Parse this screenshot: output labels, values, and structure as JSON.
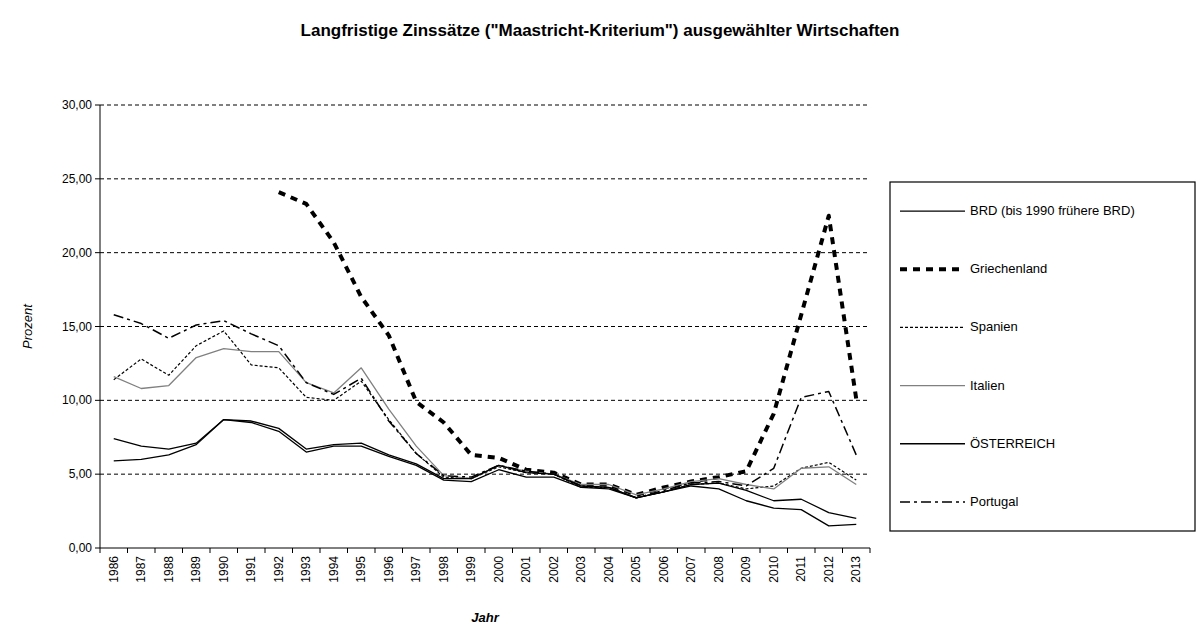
{
  "chart_data": {
    "type": "line",
    "title": "Langfristige Zinssätze (\"Maastricht-Kriterium\") ausgewählter Wirtschaften",
    "x_label": "Jahr",
    "y_label": "Prozent",
    "categories": [
      "1986",
      "1987",
      "1988",
      "1989",
      "1990",
      "1991",
      "1992",
      "1993",
      "1994",
      "1995",
      "1996",
      "1997",
      "1998",
      "1999",
      "2000",
      "2001",
      "2002",
      "2003",
      "2004",
      "2005",
      "2006",
      "2007",
      "2008",
      "2009",
      "2010",
      "2011",
      "2012",
      "2013"
    ],
    "ylim": [
      0,
      30
    ],
    "yticks": [
      {
        "value": 0,
        "label": "0,00"
      },
      {
        "value": 5,
        "label": "5,00"
      },
      {
        "value": 10,
        "label": "10,00"
      },
      {
        "value": 15,
        "label": "15,00"
      },
      {
        "value": 20,
        "label": "20,00"
      },
      {
        "value": 25,
        "label": "25,00"
      },
      {
        "value": 30,
        "label": "30,00"
      }
    ],
    "grid": true,
    "legend": "right",
    "series": [
      {
        "name": "BRD (bis 1990 frühere BRD)",
        "color": "#000000",
        "line_style": "solid",
        "values": [
          5.9,
          6.0,
          6.3,
          7.0,
          8.7,
          8.5,
          7.9,
          6.5,
          6.9,
          6.9,
          6.2,
          5.6,
          4.6,
          4.5,
          5.3,
          4.8,
          4.8,
          4.1,
          4.0,
          3.4,
          3.8,
          4.2,
          4.0,
          3.2,
          2.7,
          2.6,
          1.5,
          1.6
        ]
      },
      {
        "name": "Griechenland",
        "color": "#000000",
        "line_style": "dashed",
        "values": [
          null,
          null,
          null,
          null,
          null,
          null,
          24.1,
          23.3,
          20.7,
          17.0,
          14.4,
          9.9,
          8.5,
          6.3,
          6.1,
          5.3,
          5.1,
          4.3,
          4.3,
          3.6,
          4.1,
          4.5,
          4.8,
          5.2,
          9.1,
          15.8,
          22.5,
          10.1
        ]
      },
      {
        "name": "Spanien",
        "color": "#000000",
        "line_style": "dotted",
        "values": [
          11.4,
          12.8,
          11.7,
          13.7,
          14.7,
          12.4,
          12.2,
          10.2,
          10.0,
          11.3,
          8.7,
          6.4,
          4.8,
          4.7,
          5.5,
          5.1,
          5.0,
          4.1,
          4.1,
          3.4,
          3.8,
          4.3,
          4.4,
          4.0,
          4.2,
          5.4,
          5.8,
          4.6
        ]
      },
      {
        "name": "Italien",
        "color": "#808080",
        "line_style": "solid",
        "values": [
          11.6,
          10.8,
          11.0,
          12.9,
          13.5,
          13.3,
          13.3,
          11.2,
          10.5,
          12.2,
          9.4,
          6.9,
          4.9,
          4.7,
          5.6,
          5.2,
          5.0,
          4.3,
          4.3,
          3.6,
          4.0,
          4.5,
          4.7,
          4.3,
          4.0,
          5.4,
          5.5,
          4.3
        ]
      },
      {
        "name": "ÖSTERREICH",
        "color": "#000000",
        "line_style": "solid",
        "values": [
          7.4,
          6.9,
          6.7,
          7.1,
          8.7,
          8.6,
          8.1,
          6.7,
          7.0,
          7.1,
          6.3,
          5.7,
          4.7,
          4.7,
          5.6,
          5.1,
          5.0,
          4.2,
          4.1,
          3.4,
          3.8,
          4.3,
          4.4,
          3.9,
          3.2,
          3.3,
          2.4,
          2.0
        ]
      },
      {
        "name": "Portugal",
        "color": "#000000",
        "line_style": "dashdot",
        "values": [
          15.8,
          15.2,
          14.2,
          15.1,
          15.4,
          14.5,
          13.7,
          11.2,
          10.4,
          11.5,
          8.6,
          6.4,
          4.9,
          4.8,
          5.6,
          5.2,
          5.0,
          4.2,
          4.1,
          3.4,
          3.9,
          4.4,
          4.5,
          4.2,
          5.4,
          10.2,
          10.6,
          6.3
        ]
      }
    ]
  }
}
